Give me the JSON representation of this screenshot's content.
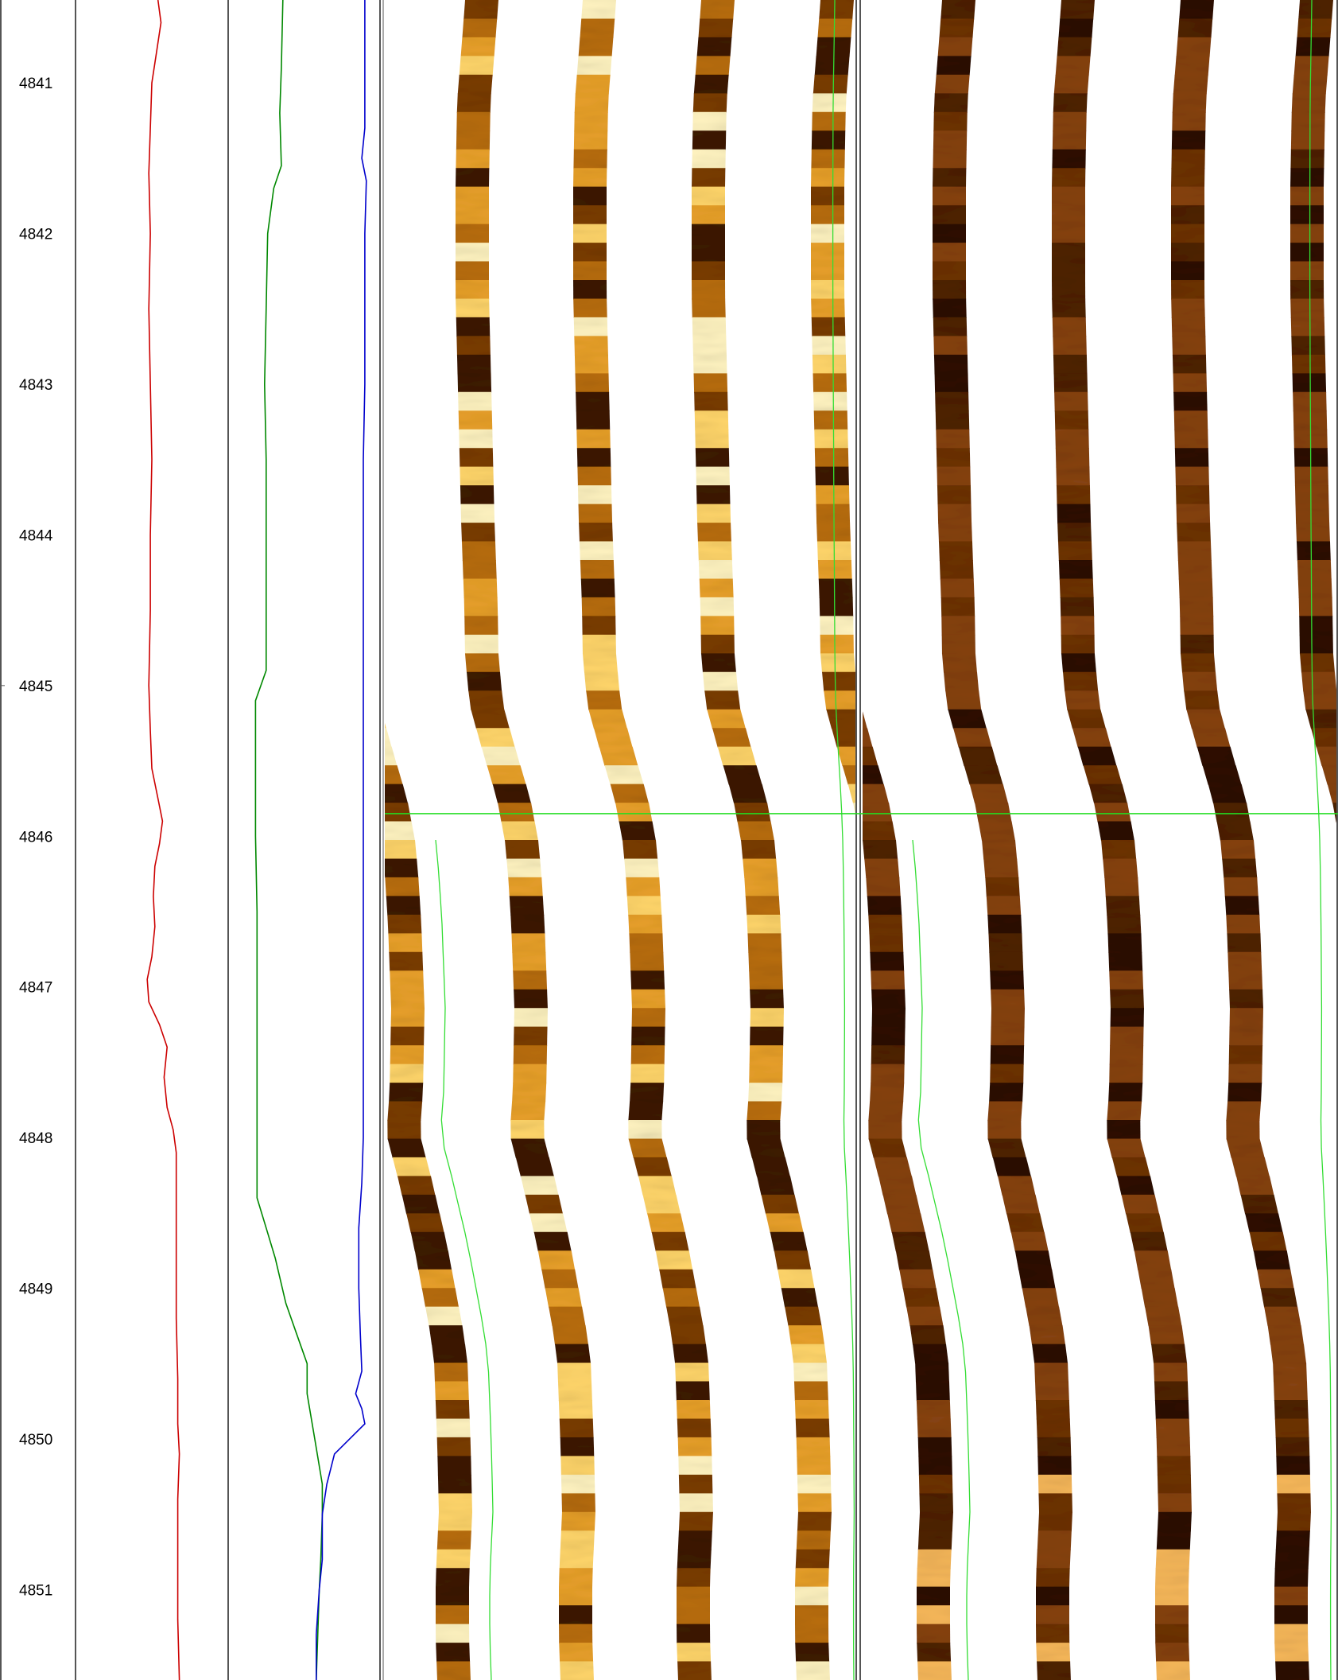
{
  "chart_data": {
    "type": "line",
    "title": "",
    "xlabel": "",
    "ylabel": "",
    "ylim": [
      4840.45,
      4851.6
    ],
    "depth_ticks": [
      4841,
      4842,
      4843,
      4844,
      4845,
      4846,
      4847,
      4848,
      4849,
      4850,
      4851
    ],
    "depth_tick_labels": [
      "4841",
      "4842",
      "4843",
      "4844",
      "4845",
      "4846",
      "4847",
      "4848",
      "4849",
      "4850",
      "4851"
    ],
    "marker_depth": 4845.85,
    "tracks": [
      {
        "name": "",
        "color": "#cc0000",
        "depth": [
          4840.45,
          4840.6,
          4840.8,
          4841.0,
          4841.3,
          4841.6,
          4842.0,
          4842.5,
          4843.0,
          4843.5,
          4844.0,
          4844.5,
          4845.0,
          4845.3,
          4845.55,
          4845.75,
          4845.9,
          4846.05,
          4846.2,
          4846.4,
          4846.6,
          4846.8,
          4846.95,
          4847.1,
          4847.25,
          4847.4,
          4847.6,
          4847.8,
          4847.95,
          4848.1,
          4848.4,
          4848.8,
          4849.2,
          4849.6,
          4849.9,
          4850.1,
          4850.4,
          4850.8,
          4851.2,
          4851.6
        ],
        "value": [
          0.54,
          0.56,
          0.53,
          0.5,
          0.49,
          0.48,
          0.49,
          0.48,
          0.49,
          0.5,
          0.49,
          0.49,
          0.48,
          0.49,
          0.5,
          0.54,
          0.57,
          0.55,
          0.52,
          0.51,
          0.52,
          0.5,
          0.47,
          0.48,
          0.55,
          0.6,
          0.58,
          0.6,
          0.64,
          0.66,
          0.66,
          0.66,
          0.66,
          0.67,
          0.67,
          0.68,
          0.67,
          0.67,
          0.67,
          0.68
        ]
      },
      {
        "name": "",
        "color": "#008800",
        "depth": [
          4840.45,
          4840.9,
          4841.2,
          4841.55,
          4841.7,
          4842.0,
          4842.5,
          4843.0,
          4843.5,
          4844.0,
          4844.5,
          4844.9,
          4845.1,
          4845.5,
          4846.0,
          4846.5,
          4847.0,
          4847.5,
          4848.0,
          4848.4,
          4848.6,
          4848.8,
          4849.1,
          4849.3,
          4849.5,
          4849.7,
          4850.0,
          4850.3,
          4850.5,
          4850.8,
          4851.0,
          4851.3,
          4851.6
        ],
        "value": [
          0.36,
          0.35,
          0.34,
          0.35,
          0.3,
          0.26,
          0.25,
          0.24,
          0.25,
          0.25,
          0.25,
          0.25,
          0.18,
          0.18,
          0.18,
          0.19,
          0.19,
          0.19,
          0.19,
          0.19,
          0.25,
          0.31,
          0.38,
          0.45,
          0.52,
          0.52,
          0.57,
          0.62,
          0.62,
          0.61,
          0.6,
          0.59,
          0.58
        ]
      },
      {
        "name": "",
        "color": "#0000cc",
        "depth": [
          4840.45,
          4840.9,
          4841.3,
          4841.5,
          4841.65,
          4842.0,
          4842.5,
          4843.0,
          4843.5,
          4844.0,
          4844.5,
          4845.0,
          4845.5,
          4846.0,
          4846.5,
          4847.0,
          4847.5,
          4848.0,
          4848.3,
          4848.6,
          4849.0,
          4849.3,
          4849.55,
          4849.7,
          4849.8,
          4849.9,
          4850.0,
          4850.1,
          4850.3,
          4850.5,
          4850.8,
          4851.0,
          4851.3,
          4851.6
        ],
        "value": [
          0.9,
          0.9,
          0.9,
          0.88,
          0.91,
          0.9,
          0.9,
          0.9,
          0.89,
          0.89,
          0.89,
          0.89,
          0.89,
          0.89,
          0.89,
          0.89,
          0.89,
          0.89,
          0.88,
          0.86,
          0.86,
          0.87,
          0.88,
          0.84,
          0.88,
          0.9,
          0.8,
          0.7,
          0.65,
          0.62,
          0.62,
          0.6,
          0.58,
          0.58
        ]
      }
    ],
    "image_tracks": [
      {
        "name": "",
        "palette": [
          "#3d1a00",
          "#7a3c00",
          "#b86d08",
          "#e8a02a",
          "#ffd56a",
          "#fff3c0"
        ]
      },
      {
        "name": "",
        "palette": [
          "#2e0f00",
          "#4f2100",
          "#6d3206",
          "#864212",
          "#a0561e",
          "#f6b75a"
        ]
      }
    ]
  }
}
